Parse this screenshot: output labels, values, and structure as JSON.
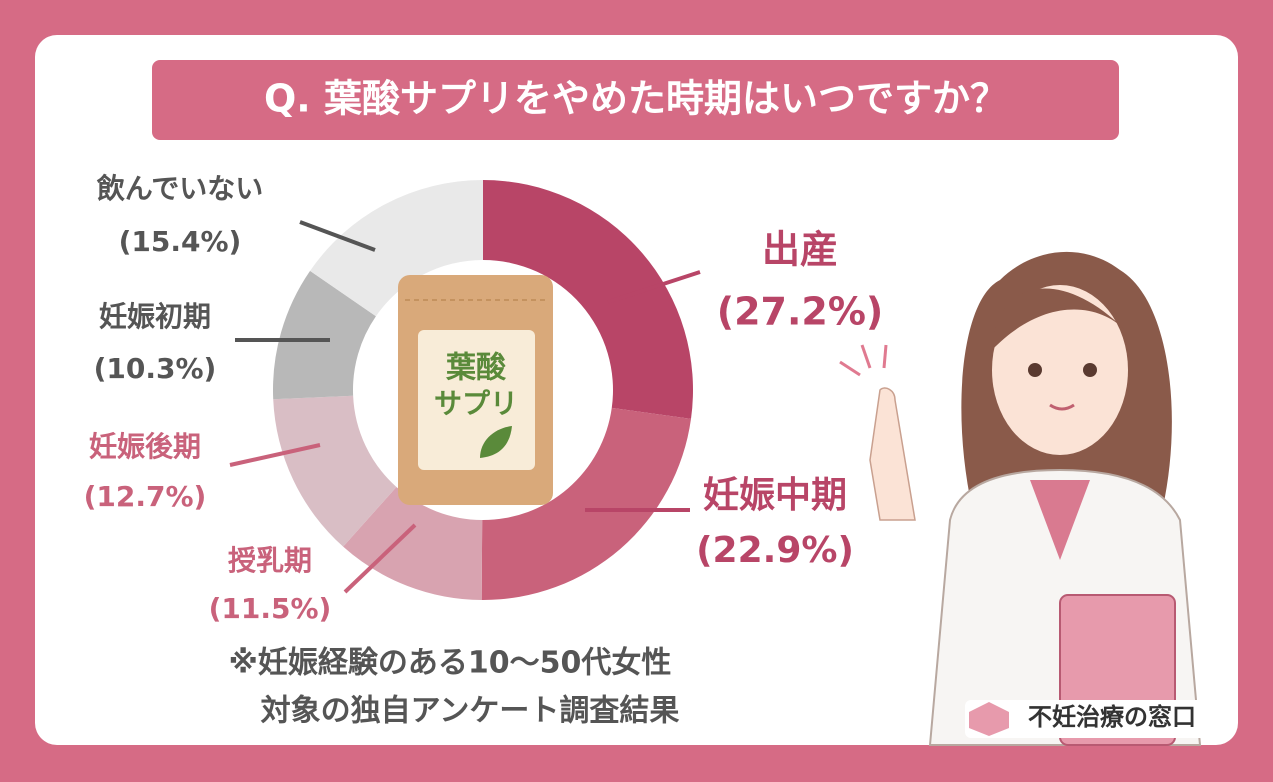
{
  "chart_data": {
    "type": "pie",
    "donut": true,
    "title": "Q. 葉酸サプリをやめた時期はいつですか？",
    "categories": [
      "出産",
      "妊娠中期",
      "授乳期",
      "妊娠後期",
      "妊娠初期",
      "飲んでいない"
    ],
    "values": [
      27.2,
      22.9,
      11.5,
      12.7,
      10.3,
      15.4
    ],
    "value_labels": [
      "(27.2%)",
      "(22.9%)",
      "(11.5%)",
      "(12.7%)",
      "(10.3%)",
      "(15.4%)"
    ],
    "colors": [
      "#b84567",
      "#c9627b",
      "#d8a3b0",
      "#d9bec5",
      "#b8b8b8",
      "#e9e9e9"
    ],
    "center_text": [
      "葉酸",
      "サプリ"
    ],
    "note": [
      "※妊娠経験のある10～50代女性",
      "対象の独自アンケート調査結果"
    ],
    "logo": "不妊治療の窓口"
  }
}
